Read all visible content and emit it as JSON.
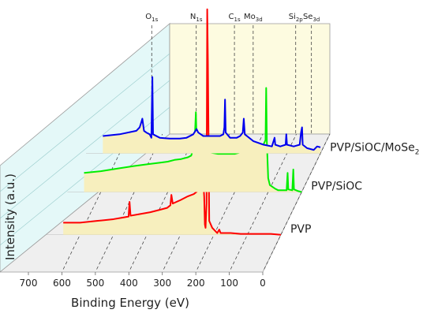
{
  "chart_data": {
    "type": "line",
    "subtype": "3d-waterfall",
    "title": "",
    "xlabel": "Binding Energy (eV)",
    "ylabel": "Intensity (a.u.)",
    "x_reversed": true,
    "xlim": [
      700,
      0
    ],
    "x_ticks": [
      "700",
      "600",
      "500",
      "400",
      "300",
      "200",
      "100",
      "0"
    ],
    "grid": true,
    "peak_markers": [
      {
        "base": "O",
        "sub": "1s",
        "x": 532
      },
      {
        "base": "N",
        "sub": "1s",
        "x": 399
      },
      {
        "base": "C",
        "sub": "1s",
        "x": 285
      },
      {
        "base": "Mo",
        "sub": "3d",
        "x": 229
      },
      {
        "base": "Si",
        "sub": "2p",
        "x": 102
      },
      {
        "base": "Se",
        "sub": "3d",
        "x": 55
      }
    ],
    "series": [
      {
        "name": "PVP",
        "label_base": "PVP",
        "label_sub": "",
        "label_tail": "",
        "color": "#ff0000",
        "points": [
          [
            650,
            14
          ],
          [
            600,
            14
          ],
          [
            550,
            16
          ],
          [
            500,
            18
          ],
          [
            470,
            20
          ],
          [
            455,
            21
          ],
          [
            452,
            38
          ],
          [
            449,
            22
          ],
          [
            420,
            24
          ],
          [
            390,
            26
          ],
          [
            360,
            29
          ],
          [
            340,
            31
          ],
          [
            330,
            34
          ],
          [
            327,
            46
          ],
          [
            323,
            36
          ],
          [
            300,
            40
          ],
          [
            280,
            44
          ],
          [
            260,
            47
          ],
          [
            250,
            50
          ],
          [
            245,
            54
          ],
          [
            240,
            60
          ],
          [
            235,
            68
          ],
          [
            232,
            62
          ],
          [
            229,
            44
          ],
          [
            227,
            12
          ],
          [
            225,
            8
          ],
          [
            222,
            36
          ],
          [
            220,
            260
          ],
          [
            218,
            200
          ],
          [
            214,
            16
          ],
          [
            205,
            8
          ],
          [
            190,
            2
          ],
          [
            184,
            6
          ],
          [
            180,
            2
          ],
          [
            150,
            2
          ],
          [
            120,
            1
          ],
          [
            110,
            1
          ],
          [
            100,
            1
          ],
          [
            60,
            1
          ],
          [
            30,
            1
          ],
          [
            0,
            0
          ]
        ]
      },
      {
        "name": "PVP/SiOC",
        "label_base": "PVP/SiOC",
        "label_sub": "",
        "label_tail": "",
        "color": "#00ee00",
        "points": [
          [
            650,
            22
          ],
          [
            600,
            24
          ],
          [
            550,
            27
          ],
          [
            500,
            30
          ],
          [
            460,
            32
          ],
          [
            420,
            34
          ],
          [
            400,
            35
          ],
          [
            380,
            37
          ],
          [
            360,
            38
          ],
          [
            340,
            40
          ],
          [
            330,
            42
          ],
          [
            325,
            48
          ],
          [
            320,
            55
          ],
          [
            316,
            92
          ],
          [
            313,
            50
          ],
          [
            300,
            48
          ],
          [
            280,
            46
          ],
          [
            250,
            44
          ],
          [
            220,
            44
          ],
          [
            200,
            44
          ],
          [
            180,
            46
          ],
          [
            150,
            48
          ],
          [
            125,
            50
          ],
          [
            115,
            54
          ],
          [
            108,
            60
          ],
          [
            106,
            120
          ],
          [
            104,
            58
          ],
          [
            100,
            16
          ],
          [
            95,
            8
          ],
          [
            80,
            4
          ],
          [
            70,
            2
          ],
          [
            60,
            2
          ],
          [
            45,
            2
          ],
          [
            42,
            22
          ],
          [
            40,
            3
          ],
          [
            28,
            2
          ],
          [
            25,
            26
          ],
          [
            23,
            3
          ],
          [
            10,
            1
          ],
          [
            0,
            0
          ]
        ]
      },
      {
        "name": "PVP/SiOC/MoSe2",
        "label_base": "PVP/SiOC/MoSe",
        "label_sub": "2",
        "label_tail": "",
        "color": "#0000ee",
        "points": [
          [
            650,
            20
          ],
          [
            600,
            22
          ],
          [
            550,
            26
          ],
          [
            540,
            30
          ],
          [
            535,
            36
          ],
          [
            532,
            40
          ],
          [
            527,
            26
          ],
          [
            520,
            24
          ],
          [
            510,
            22
          ],
          [
            505,
            18
          ],
          [
            502,
            88
          ],
          [
            500,
            22
          ],
          [
            480,
            18
          ],
          [
            450,
            17
          ],
          [
            420,
            17
          ],
          [
            400,
            18
          ],
          [
            380,
            22
          ],
          [
            370,
            28
          ],
          [
            365,
            24
          ],
          [
            350,
            20
          ],
          [
            330,
            20
          ],
          [
            300,
            20
          ],
          [
            290,
            22
          ],
          [
            287,
            30
          ],
          [
            285,
            62
          ],
          [
            283,
            24
          ],
          [
            270,
            18
          ],
          [
            250,
            18
          ],
          [
            240,
            20
          ],
          [
            232,
            24
          ],
          [
            229,
            40
          ],
          [
            226,
            22
          ],
          [
            200,
            14
          ],
          [
            170,
            10
          ],
          [
            145,
            8
          ],
          [
            137,
            18
          ],
          [
            135,
            10
          ],
          [
            120,
            8
          ],
          [
            104,
            10
          ],
          [
            102,
            22
          ],
          [
            100,
            10
          ],
          [
            80,
            8
          ],
          [
            62,
            10
          ],
          [
            58,
            24
          ],
          [
            55,
            30
          ],
          [
            53,
            10
          ],
          [
            40,
            6
          ],
          [
            20,
            4
          ],
          [
            10,
            8
          ],
          [
            0,
            7
          ]
        ]
      }
    ]
  }
}
